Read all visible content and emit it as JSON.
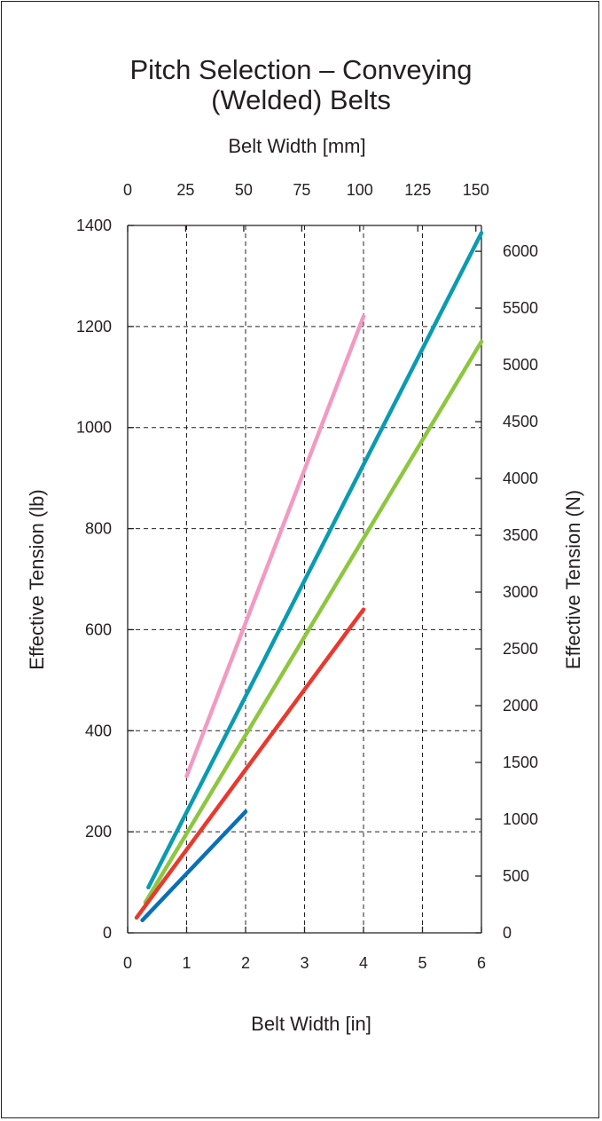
{
  "chart_data": {
    "type": "line",
    "title_line1": "Pitch Selection – Conveying",
    "title_line2": "(Welded) Belts",
    "x_bottom": {
      "label": "Belt Width [in]",
      "range": [
        0,
        6
      ],
      "ticks": [
        "0",
        "1",
        "2",
        "3",
        "4",
        "5",
        "6"
      ]
    },
    "x_top": {
      "label": "Belt Width [mm]",
      "range": [
        0,
        152.4
      ],
      "ticks": [
        0,
        25,
        50,
        75,
        100,
        125,
        150
      ]
    },
    "y_left": {
      "label": "Effective Tension (lb)",
      "range": [
        0,
        1400
      ],
      "ticks": [
        0,
        200,
        400,
        600,
        800,
        1000,
        1200,
        1400
      ]
    },
    "y_right": {
      "label": "Effective Tension (N)",
      "range": [
        0,
        6227.5
      ],
      "ticks": [
        0,
        500,
        1000,
        1500,
        2000,
        2500,
        3000,
        3500,
        4000,
        4500,
        5000,
        5500,
        6000
      ]
    },
    "grid": true,
    "series": [
      {
        "color": "#f29ac2",
        "x": [
          1.0,
          4.0
        ],
        "y": [
          310,
          1220
        ]
      },
      {
        "color": "#0a9bb0",
        "x": [
          0.35,
          6.0
        ],
        "y": [
          90,
          1385
        ]
      },
      {
        "color": "#8dc63f",
        "x": [
          0.3,
          6.0
        ],
        "y": [
          60,
          1170
        ]
      },
      {
        "color": "#e8392f",
        "x": [
          0.15,
          4.0
        ],
        "y": [
          30,
          640
        ]
      },
      {
        "color": "#0a6fb7",
        "x": [
          0.25,
          2.0
        ],
        "y": [
          25,
          240
        ]
      }
    ]
  }
}
